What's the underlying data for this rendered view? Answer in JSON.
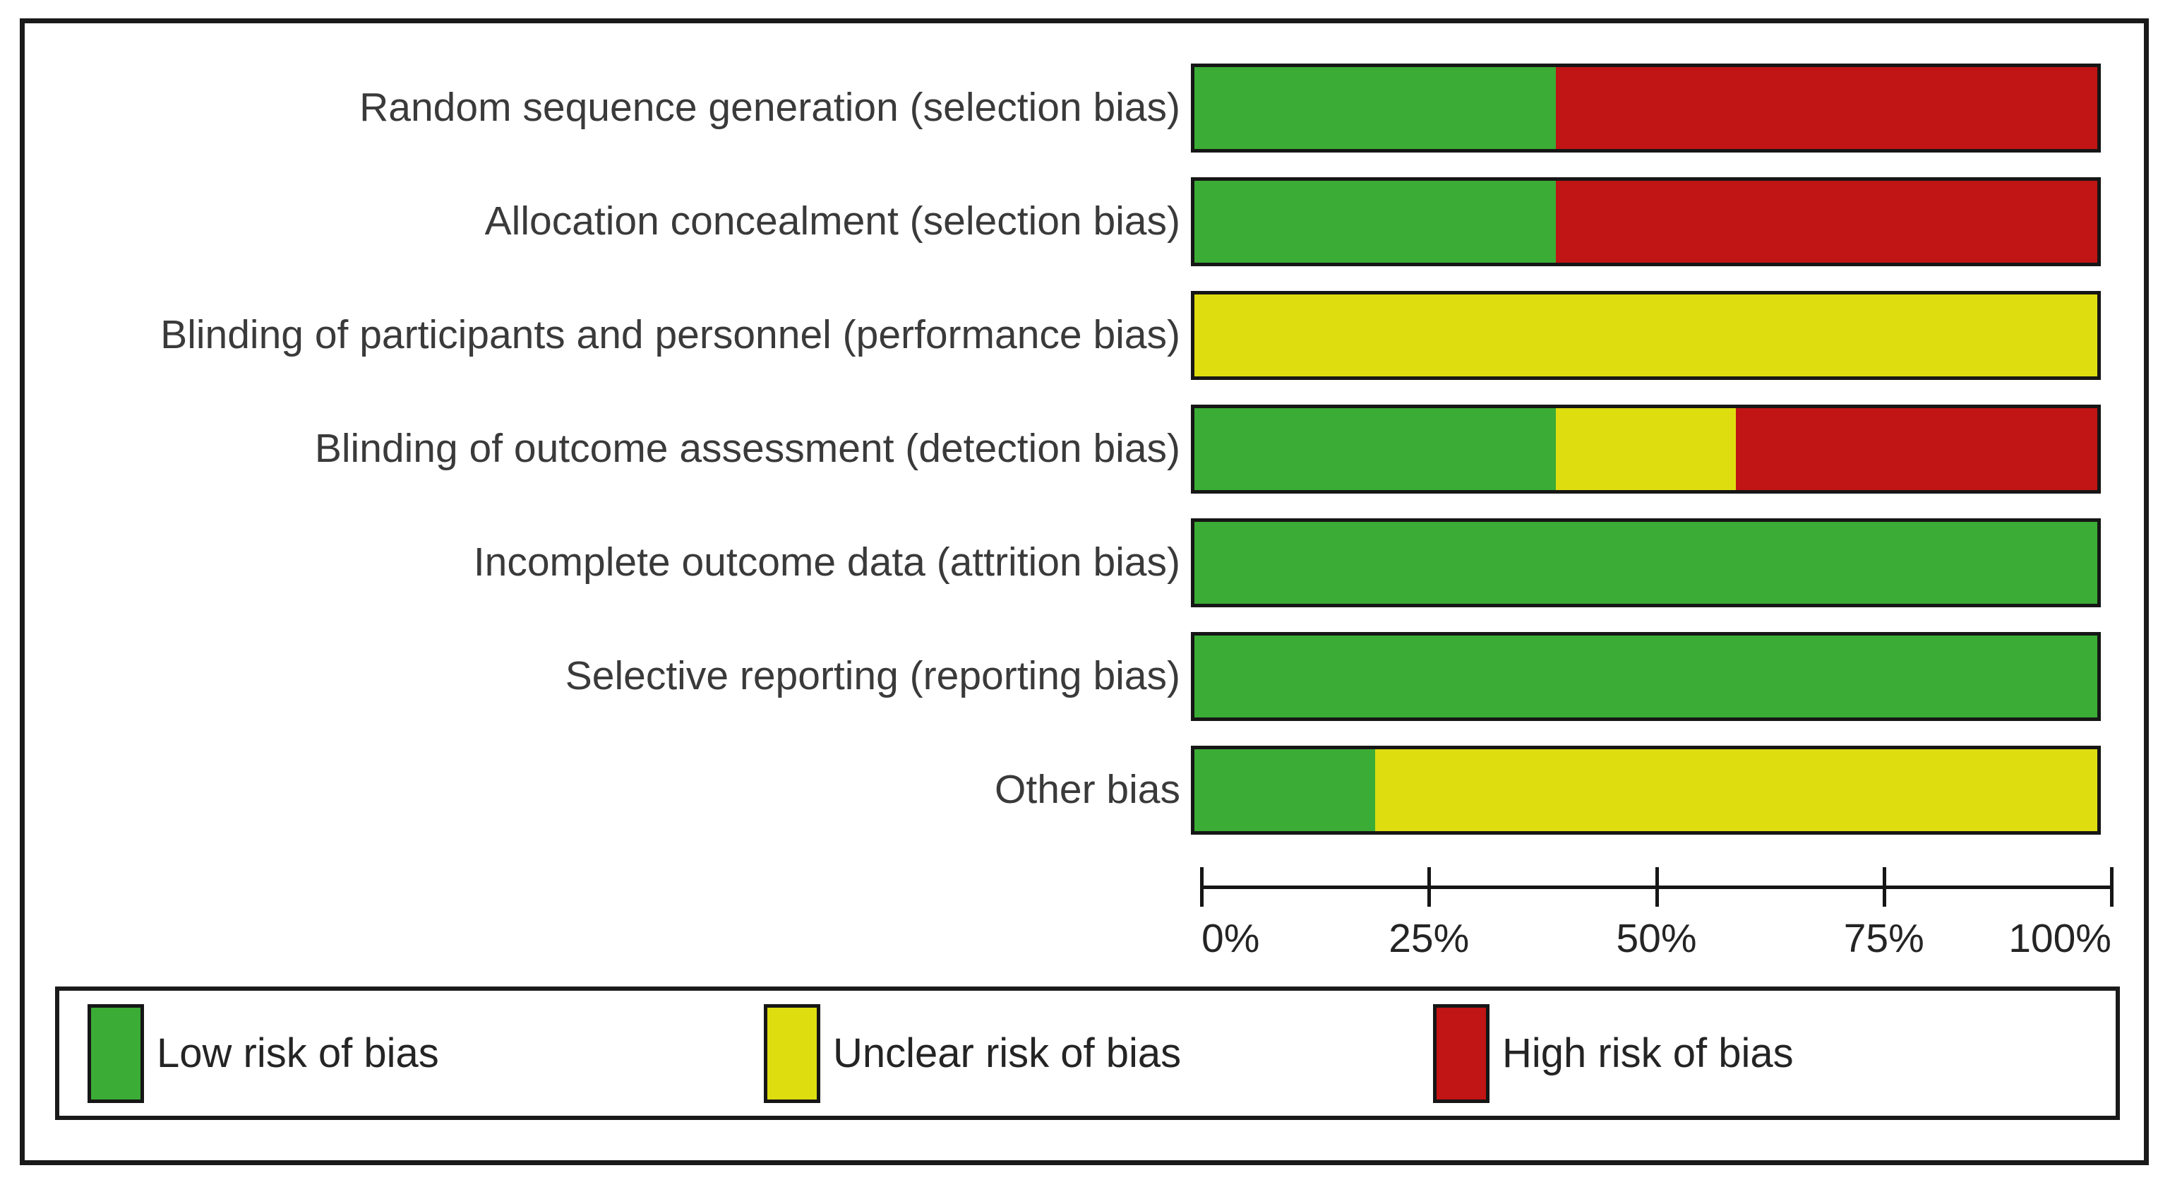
{
  "chart_data": {
    "type": "bar",
    "orientation": "horizontal",
    "stacked": true,
    "categories": [
      "Random sequence generation (selection bias)",
      "Allocation concealment (selection bias)",
      "Blinding of participants and personnel (performance bias)",
      "Blinding of outcome assessment (detection bias)",
      "Incomplete outcome data (attrition bias)",
      "Selective reporting (reporting bias)",
      "Other bias"
    ],
    "series": [
      {
        "name": "Low risk of bias",
        "color": "#3BAC35",
        "values": [
          40,
          40,
          0,
          40,
          100,
          100,
          20
        ]
      },
      {
        "name": "Unclear risk of bias",
        "color": "#DEDD10",
        "values": [
          0,
          0,
          100,
          20,
          0,
          0,
          80
        ]
      },
      {
        "name": "High risk of bias",
        "color": "#C11414",
        "values": [
          60,
          60,
          0,
          40,
          0,
          0,
          0
        ]
      }
    ],
    "x_ticks": [
      "0%",
      "25%",
      "50%",
      "75%",
      "100%"
    ],
    "xlim": [
      0,
      100
    ],
    "grid": false,
    "legend_position": "bottom",
    "legend": [
      "Low risk of bias",
      "Unclear risk of bias",
      "High risk of bias"
    ]
  },
  "colors": {
    "low": "#3BAC35",
    "unclear": "#DEDD10",
    "high": "#C11414",
    "frame_border": "#1a1a1a",
    "bar_border": "#161616",
    "text": "#3a3a3a"
  }
}
